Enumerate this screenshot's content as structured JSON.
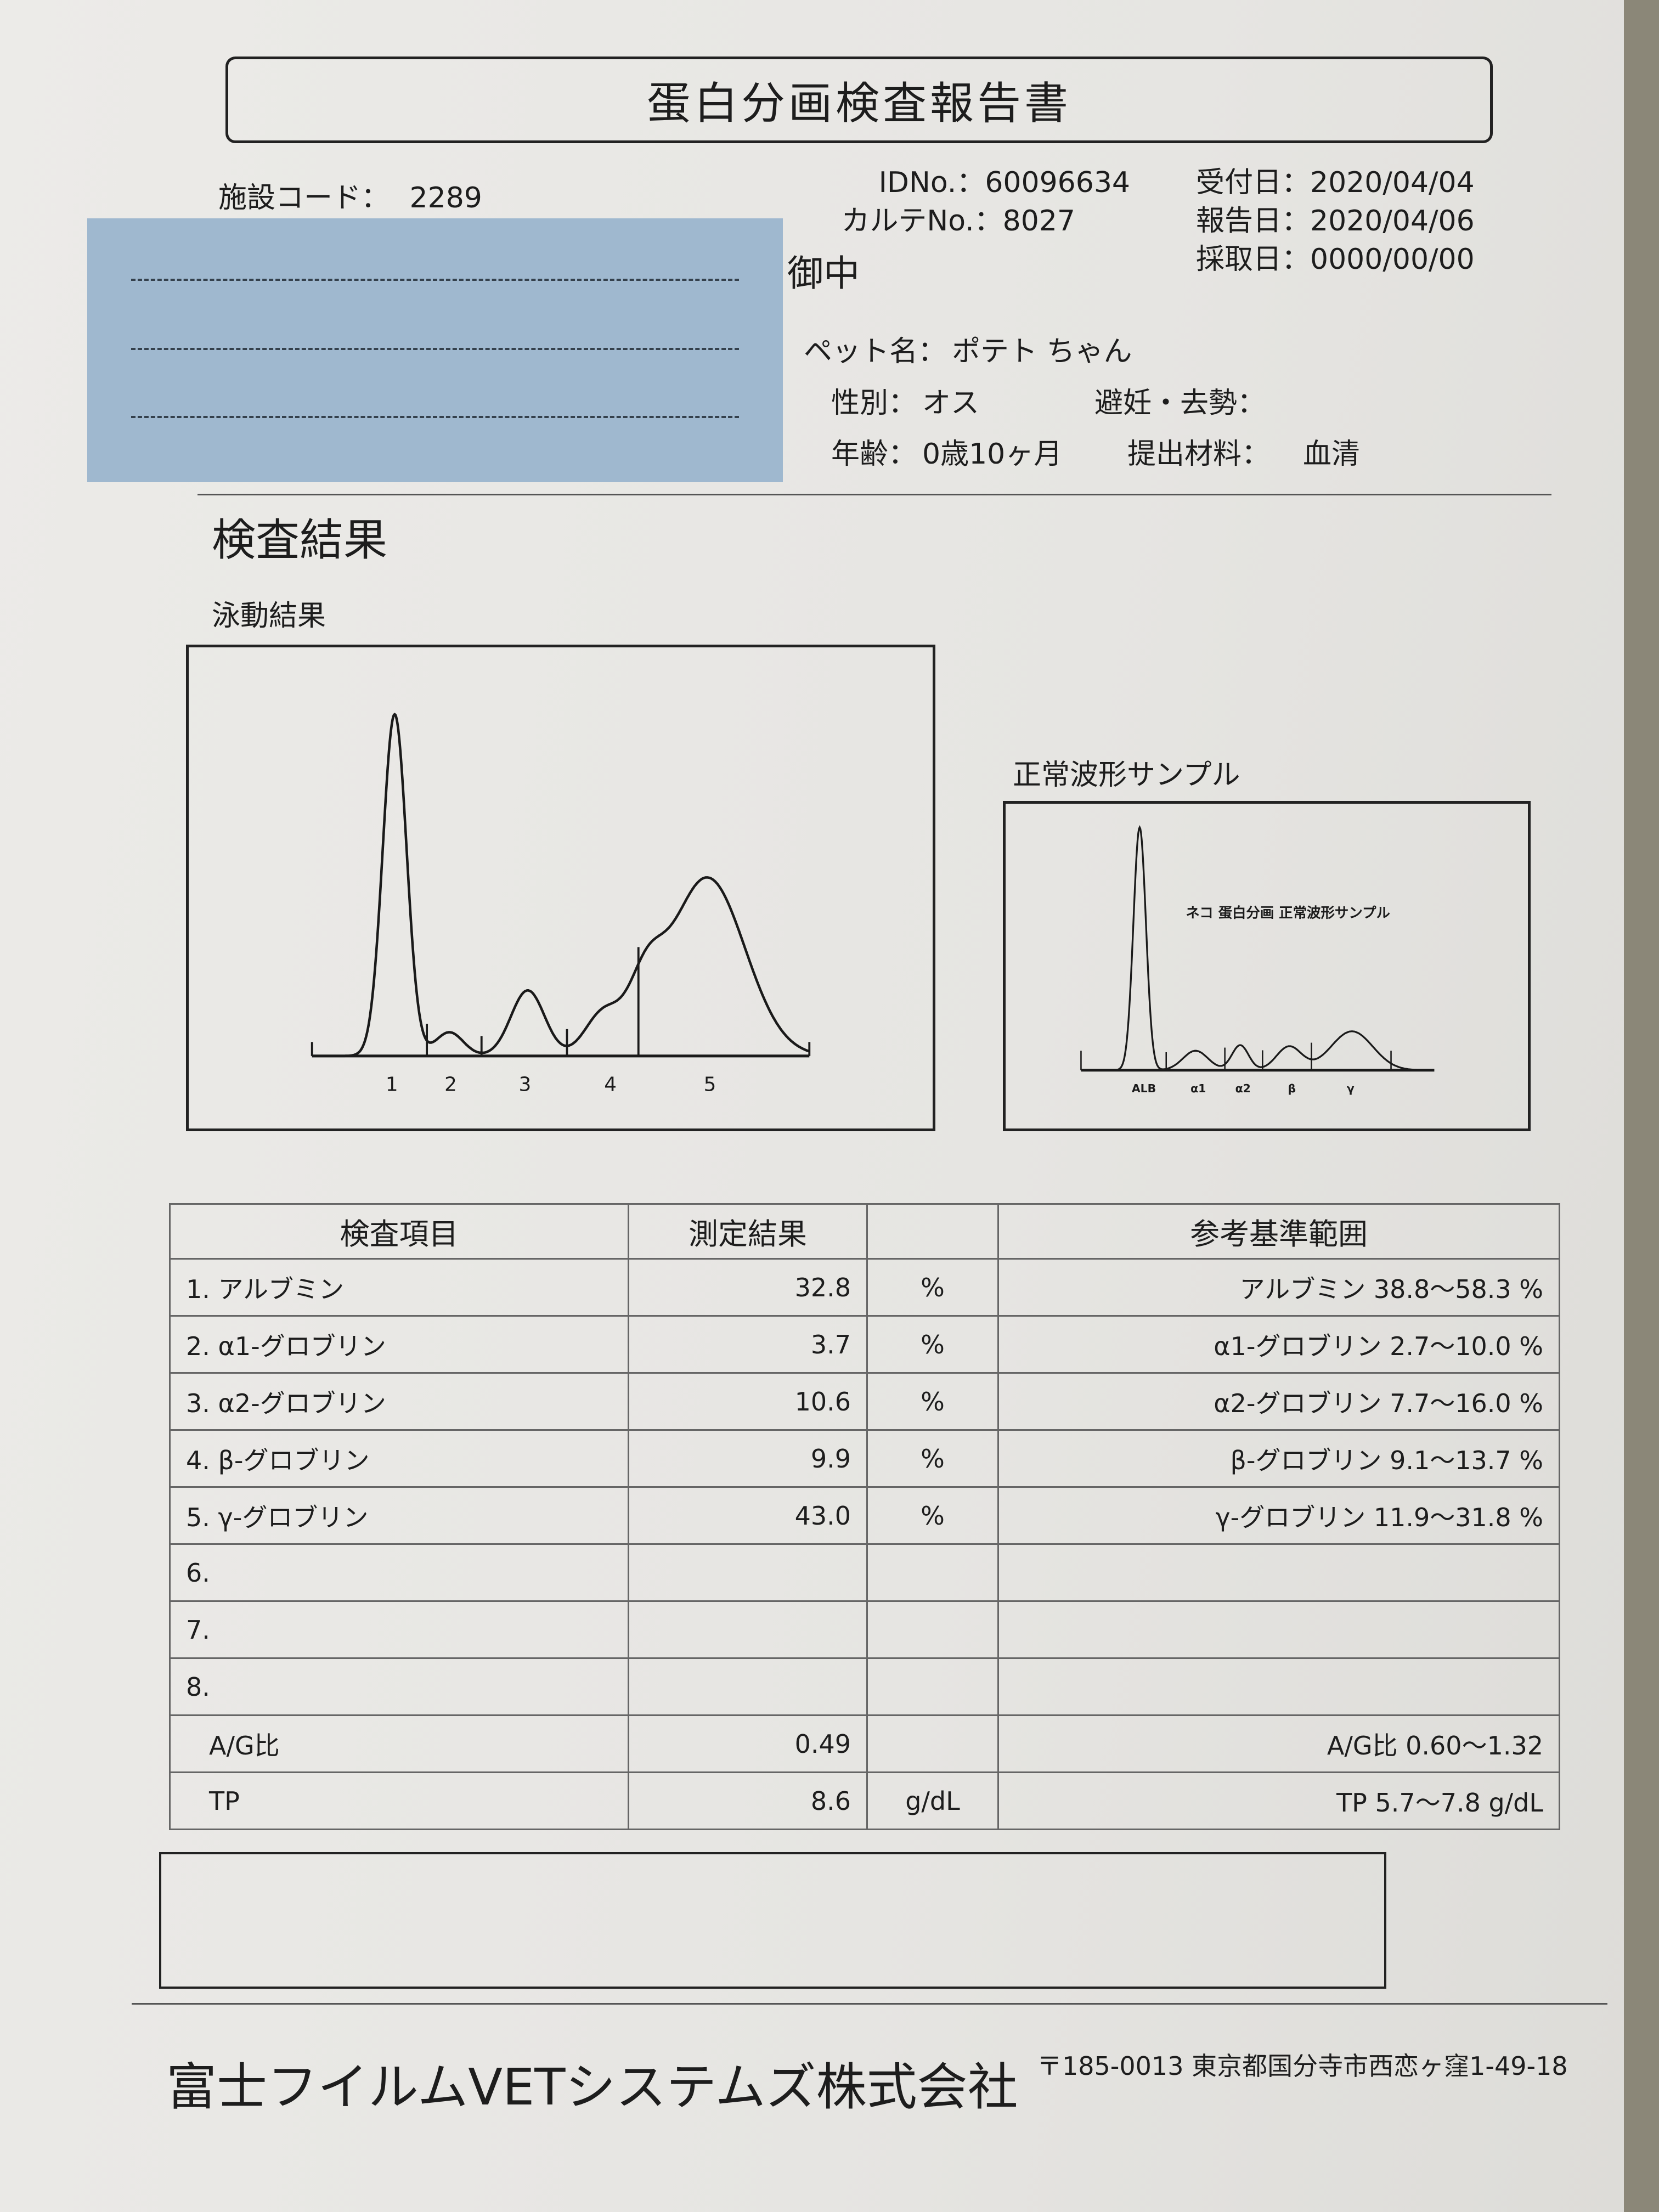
{
  "title": "蛋白分画検査報告書",
  "facility": {
    "label": "施設コード：",
    "value": "2289"
  },
  "ids": [
    {
      "label": "IDNo.",
      "value": "：60096634"
    },
    {
      "label": "カルテNo.",
      "value": "：8027"
    }
  ],
  "dates": [
    {
      "label": "受付日",
      "value": "：2020/04/04"
    },
    {
      "label": "報告日",
      "value": "：2020/04/06"
    },
    {
      "label": "採取日",
      "value": "：0000/00/00"
    }
  ],
  "onchu": "御中",
  "pet": {
    "name_label": "ペット名：",
    "name": "ポテト ちゃん",
    "sex_label": "性別：",
    "sex": "オス",
    "neuter_label": "避妊・去勢：",
    "neuter": "",
    "age_label": "年齢：",
    "age": "0歳10ヶ月",
    "material_label": "提出材料：",
    "material": "血清"
  },
  "section_title": "検査結果",
  "electrophoresis": {
    "title": "泳動結果",
    "fraction_labels": [
      "1",
      "2",
      "3",
      "4",
      "5"
    ]
  },
  "normal_sample": {
    "title": "正常波形サンプル",
    "inner_title": "ネコ 蛋白分画 正常波形サンプル",
    "fraction_labels": [
      "ALB",
      "α1",
      "α2",
      "β",
      "γ"
    ]
  },
  "table": {
    "headers": [
      "検査項目",
      "測定結果",
      "",
      "参考基準範囲"
    ],
    "rows": [
      {
        "item": "1. アルブミン",
        "result": "32.8",
        "unit": "%",
        "reference": "アルブミン 38.8～58.3 %"
      },
      {
        "item": "2. α1-グロブリン",
        "result": "3.7",
        "unit": "%",
        "reference": "α1-グロブリン 2.7～10.0 %"
      },
      {
        "item": "3. α2-グロブリン",
        "result": "10.6",
        "unit": "%",
        "reference": "α2-グロブリン 7.7～16.0 %"
      },
      {
        "item": "4. β-グロブリン",
        "result": "9.9",
        "unit": "%",
        "reference": "β-グロブリン 9.1～13.7 %"
      },
      {
        "item": "5. γ-グロブリン",
        "result": "43.0",
        "unit": "%",
        "reference": "γ-グロブリン 11.9～31.8 %"
      },
      {
        "item": "6.",
        "result": "",
        "unit": "",
        "reference": ""
      },
      {
        "item": "7.",
        "result": "",
        "unit": "",
        "reference": ""
      },
      {
        "item": "8.",
        "result": "",
        "unit": "",
        "reference": ""
      },
      {
        "item": "A/G比",
        "result": "0.49",
        "unit": "",
        "reference": "A/G比 0.60～1.32"
      },
      {
        "item": "TP",
        "result": "8.6",
        "unit": "g/dL",
        "reference": "TP 5.7～7.8 g/dL"
      }
    ]
  },
  "remarks": "",
  "footer": {
    "company": "富士フイルムVETシステムズ株式会社",
    "address": "〒185-0013 東京都国分寺市西恋ヶ窪1-49-18"
  }
}
